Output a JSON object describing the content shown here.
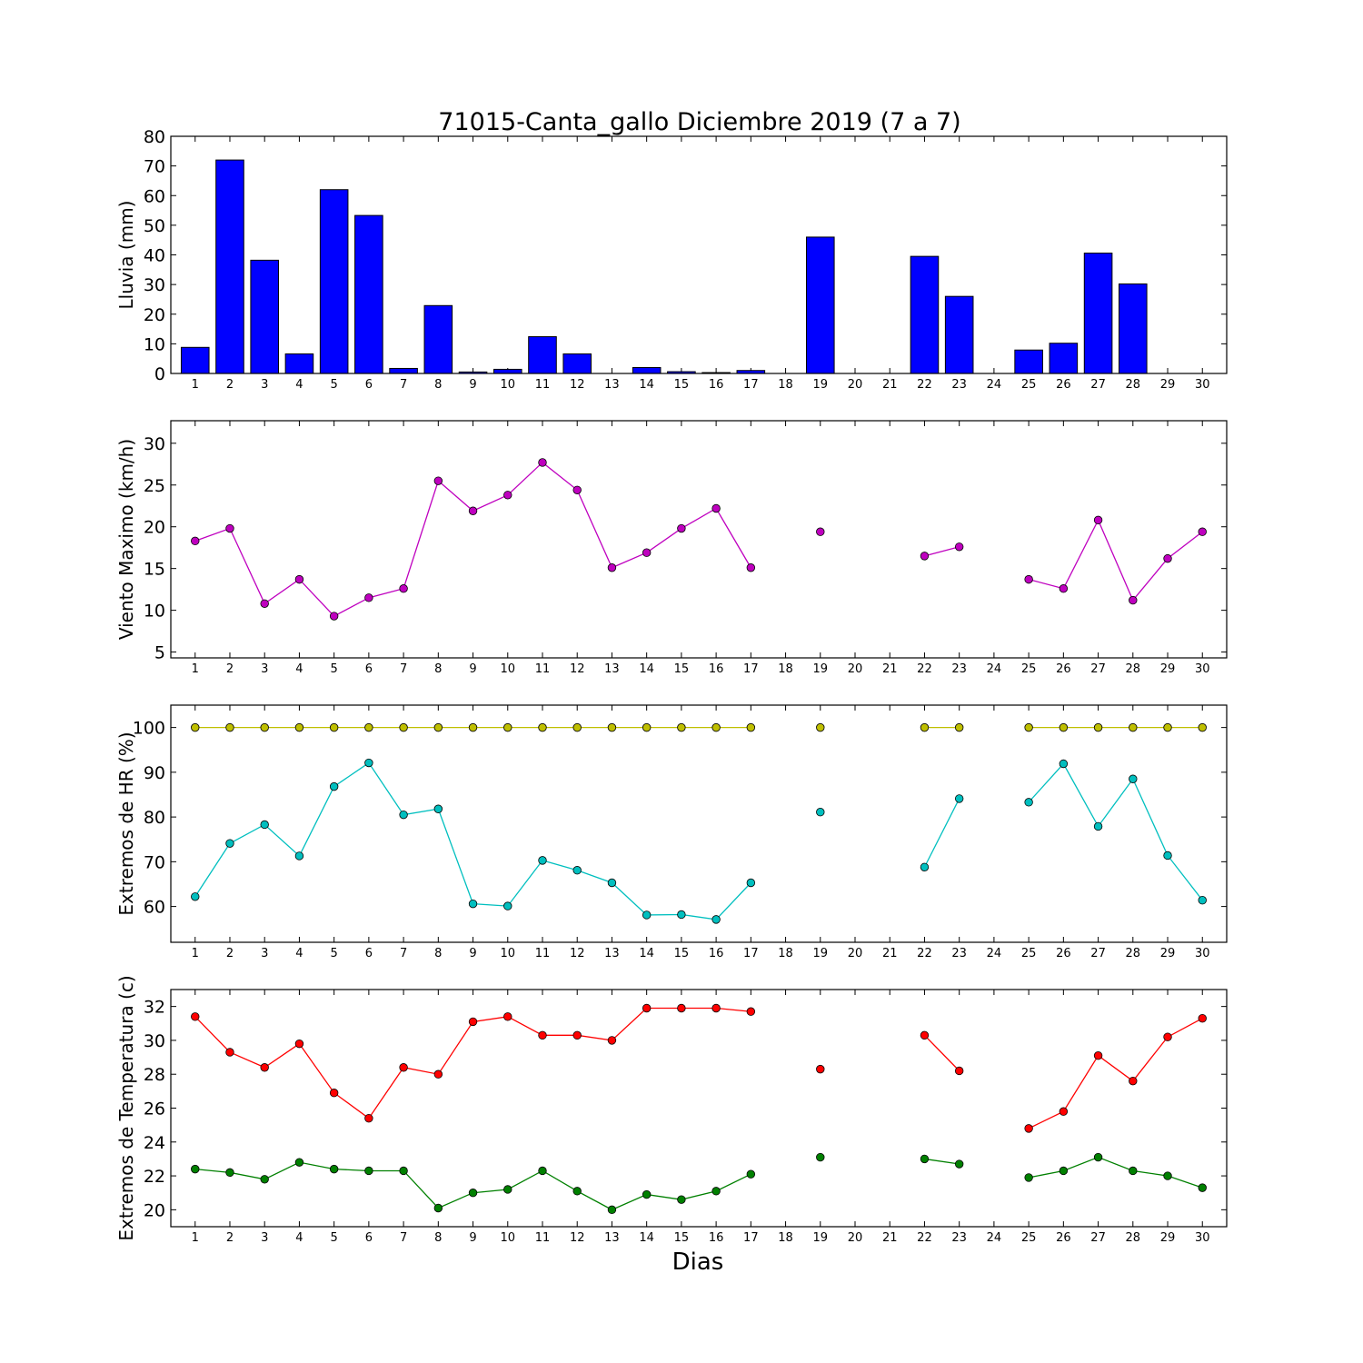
{
  "title": "71015-Canta_gallo Diciembre 2019  (7 a 7)",
  "xlabel": "Dias",
  "chart_data": [
    {
      "id": "rain",
      "type": "bar",
      "ylabel": "Lluvia (mm)",
      "ylim": [
        0,
        80
      ],
      "yticks": [
        0,
        10,
        20,
        30,
        40,
        50,
        60,
        70,
        80
      ],
      "categories": [
        1,
        2,
        3,
        4,
        5,
        6,
        7,
        8,
        9,
        10,
        11,
        12,
        13,
        14,
        15,
        16,
        17,
        18,
        19,
        20,
        21,
        22,
        23,
        24,
        25,
        26,
        27,
        28,
        29,
        30
      ],
      "series": [
        {
          "color": "#0000ff",
          "values": [
            8.8,
            72,
            38.2,
            6.6,
            62,
            53.3,
            1.7,
            22.9,
            0.5,
            1.4,
            12.4,
            6.6,
            0,
            2.0,
            0.6,
            0.3,
            1.0,
            0,
            46,
            0,
            0,
            39.5,
            26,
            0,
            7.9,
            10.2,
            40.6,
            30.2,
            0,
            0
          ]
        }
      ]
    },
    {
      "id": "wind",
      "type": "line",
      "ylabel": "Viento Maximo (km/h)",
      "ylim": [
        4.3,
        32.7
      ],
      "yticks": [
        5,
        10,
        15,
        20,
        25,
        30
      ],
      "x": [
        1,
        2,
        3,
        4,
        5,
        6,
        7,
        8,
        9,
        10,
        11,
        12,
        13,
        14,
        15,
        16,
        17,
        18,
        19,
        20,
        21,
        22,
        23,
        24,
        25,
        26,
        27,
        28,
        29,
        30
      ],
      "series": [
        {
          "color": "#bf00bf",
          "values": [
            18.3,
            19.8,
            10.8,
            13.7,
            9.3,
            11.5,
            12.6,
            25.5,
            21.9,
            23.8,
            27.7,
            24.4,
            15.1,
            16.9,
            19.8,
            22.2,
            15.1,
            null,
            19.4,
            null,
            null,
            16.5,
            17.6,
            null,
            13.7,
            12.6,
            20.8,
            11.2,
            16.2,
            19.4
          ]
        }
      ]
    },
    {
      "id": "humidity",
      "type": "line",
      "ylabel": "Extremos de HR (%)",
      "ylim": [
        52,
        105
      ],
      "yticks": [
        60,
        70,
        80,
        90,
        100
      ],
      "x": [
        1,
        2,
        3,
        4,
        5,
        6,
        7,
        8,
        9,
        10,
        11,
        12,
        13,
        14,
        15,
        16,
        17,
        18,
        19,
        20,
        21,
        22,
        23,
        24,
        25,
        26,
        27,
        28,
        29,
        30
      ],
      "series": [
        {
          "color": "#bfbf00",
          "values": [
            100,
            100,
            100,
            100,
            100,
            100,
            100,
            100,
            100,
            100,
            100,
            100,
            100,
            100,
            100,
            100,
            100,
            null,
            100,
            null,
            null,
            100,
            100,
            null,
            100,
            100,
            100,
            100,
            100,
            100
          ]
        },
        {
          "color": "#00bfbf",
          "values": [
            62.2,
            74.1,
            78.3,
            71.3,
            86.8,
            92.1,
            80.5,
            81.8,
            60.6,
            60.1,
            70.3,
            68.1,
            65.3,
            58.1,
            58.2,
            57.1,
            65.3,
            null,
            81.1,
            null,
            null,
            68.8,
            84.1,
            null,
            83.3,
            91.9,
            77.9,
            88.5,
            71.4,
            61.4
          ]
        }
      ]
    },
    {
      "id": "temperature",
      "type": "line",
      "ylabel": "Extremos de Temperatura (c)",
      "ylim": [
        19,
        33
      ],
      "yticks": [
        20,
        22,
        24,
        26,
        28,
        30,
        32
      ],
      "x": [
        1,
        2,
        3,
        4,
        5,
        6,
        7,
        8,
        9,
        10,
        11,
        12,
        13,
        14,
        15,
        16,
        17,
        18,
        19,
        20,
        21,
        22,
        23,
        24,
        25,
        26,
        27,
        28,
        29,
        30
      ],
      "series": [
        {
          "color": "#ff0000",
          "values": [
            31.4,
            29.3,
            28.4,
            29.8,
            26.9,
            25.4,
            28.4,
            28.0,
            31.1,
            31.4,
            30.3,
            30.3,
            30.0,
            31.9,
            31.9,
            31.9,
            31.7,
            null,
            28.3,
            null,
            null,
            30.3,
            28.2,
            null,
            24.8,
            25.8,
            29.1,
            27.6,
            30.2,
            31.3
          ]
        },
        {
          "color": "#008000",
          "values": [
            22.4,
            22.2,
            21.8,
            22.8,
            22.4,
            22.3,
            22.3,
            20.1,
            21.0,
            21.2,
            22.3,
            21.1,
            20.0,
            20.9,
            20.6,
            21.1,
            22.1,
            null,
            23.1,
            null,
            null,
            23.0,
            22.7,
            null,
            21.9,
            22.3,
            23.1,
            22.3,
            22.0,
            21.3
          ]
        }
      ]
    }
  ]
}
